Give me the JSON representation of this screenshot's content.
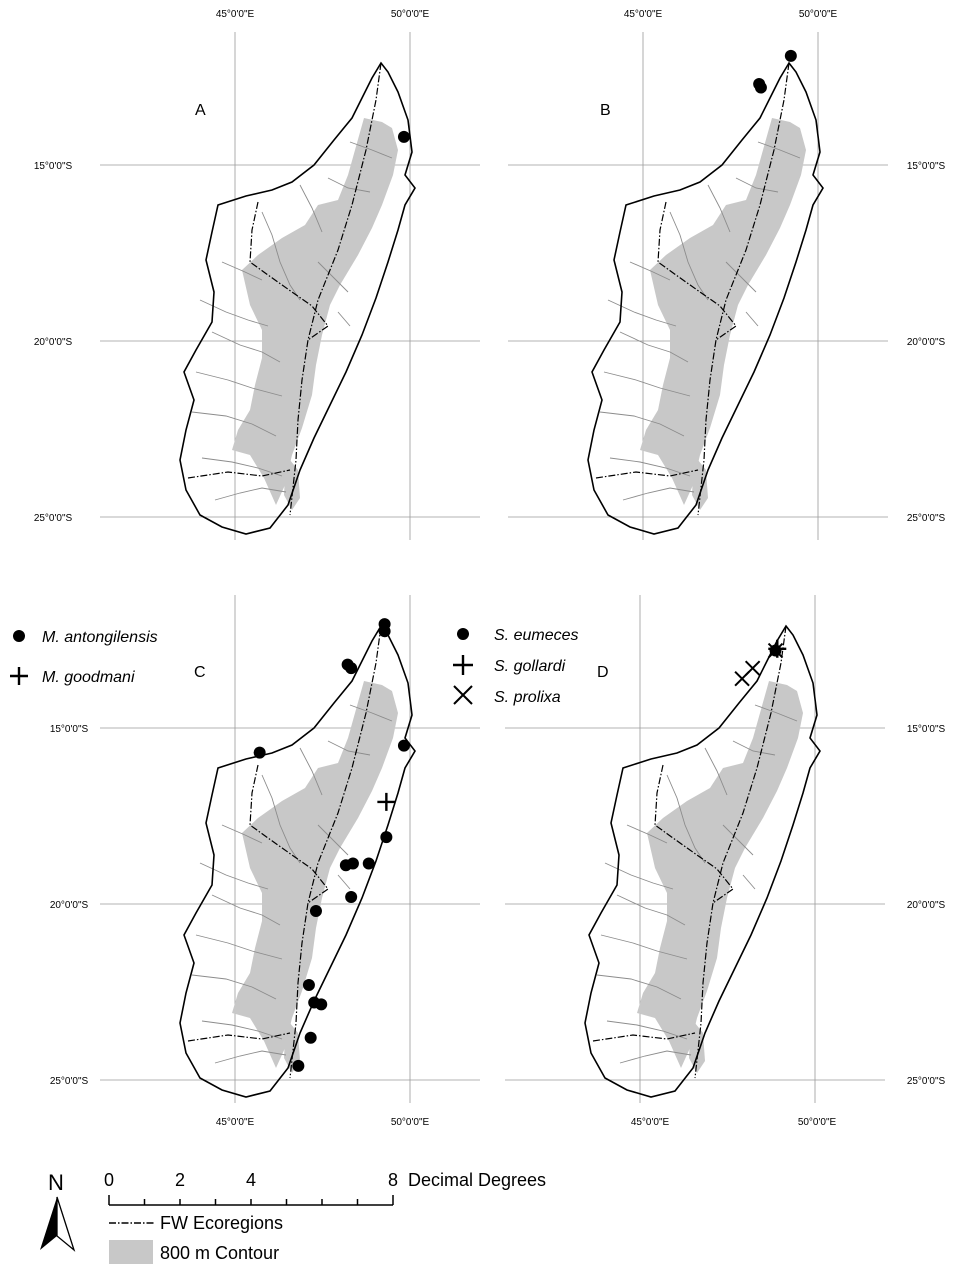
{
  "panels": [
    {
      "letter": "A",
      "lon_labels": [
        "45°0'0\"E",
        "50°0'0\"E"
      ],
      "lat_labels": [
        "15°0'0\"S",
        "20°0'0\"S",
        "25°0'0\"S"
      ],
      "records": [
        {
          "symbol": "dot",
          "lon": 49.8,
          "lat": -14.2
        }
      ]
    },
    {
      "letter": "B",
      "lon_labels": [
        "45°0'0\"E",
        "50°0'0\"E"
      ],
      "lat_labels": [
        "15°0'0\"S",
        "20°0'0\"S",
        "25°0'0\"S"
      ],
      "records": [
        {
          "symbol": "dot",
          "lon": 49.2,
          "lat": -11.9
        },
        {
          "symbol": "dot",
          "lon": 48.3,
          "lat": -12.7
        },
        {
          "symbol": "dot",
          "lon": 48.35,
          "lat": -12.8
        }
      ]
    },
    {
      "letter": "C",
      "lon_labels": [
        "45°0'0\"E",
        "50°0'0\"E"
      ],
      "lat_labels": [
        "15°0'0\"S",
        "20°0'0\"S",
        "25°0'0\"S"
      ],
      "records": [
        {
          "symbol": "dot",
          "lon": 49.25,
          "lat": -12.25
        },
        {
          "symbol": "dot",
          "lon": 49.25,
          "lat": -12.05
        },
        {
          "symbol": "dot",
          "lon": 48.2,
          "lat": -13.2
        },
        {
          "symbol": "dot",
          "lon": 48.3,
          "lat": -13.3
        },
        {
          "symbol": "dot",
          "lon": 45.7,
          "lat": -15.7
        },
        {
          "symbol": "dot",
          "lon": 49.8,
          "lat": -15.5
        },
        {
          "symbol": "plus",
          "lon": 49.3,
          "lat": -17.1
        },
        {
          "symbol": "dot",
          "lon": 49.3,
          "lat": -18.1
        },
        {
          "symbol": "dot",
          "lon": 48.15,
          "lat": -18.9
        },
        {
          "symbol": "dot",
          "lon": 48.35,
          "lat": -18.85
        },
        {
          "symbol": "dot",
          "lon": 48.8,
          "lat": -18.85
        },
        {
          "symbol": "dot",
          "lon": 48.3,
          "lat": -19.8
        },
        {
          "symbol": "dot",
          "lon": 47.3,
          "lat": -20.2
        },
        {
          "symbol": "dot",
          "lon": 47.1,
          "lat": -22.3
        },
        {
          "symbol": "dot",
          "lon": 47.25,
          "lat": -22.8
        },
        {
          "symbol": "dot",
          "lon": 47.45,
          "lat": -22.85
        },
        {
          "symbol": "dot",
          "lon": 47.15,
          "lat": -23.8
        },
        {
          "symbol": "dot",
          "lon": 46.8,
          "lat": -24.6
        }
      ]
    },
    {
      "letter": "D",
      "lon_labels": [
        "45°0'0\"E",
        "50°0'0\"E"
      ],
      "lat_labels": [
        "15°0'0\"S",
        "20°0'0\"S",
        "25°0'0\"S"
      ],
      "records": [
        {
          "symbol": "dot",
          "lon": 48.85,
          "lat": -12.8
        },
        {
          "symbol": "plus",
          "lon": 48.9,
          "lat": -12.75
        },
        {
          "symbol": "cross",
          "lon": 48.85,
          "lat": -12.8
        },
        {
          "symbol": "cross",
          "lon": 48.2,
          "lat": -13.3
        },
        {
          "symbol": "cross",
          "lon": 47.9,
          "lat": -13.6
        }
      ]
    }
  ],
  "legend_c": [
    {
      "symbol": "dot",
      "label": "M. antongilensis"
    },
    {
      "symbol": "plus",
      "label": "M. goodmani"
    }
  ],
  "legend_d": [
    {
      "symbol": "dot",
      "label": "S. eumeces"
    },
    {
      "symbol": "plus",
      "label": "S. gollardi"
    },
    {
      "symbol": "cross",
      "label": "S. prolixa"
    }
  ],
  "north": "N",
  "scale": {
    "ticks": [
      "0",
      "2",
      "4",
      "8"
    ],
    "unit": "Decimal Degrees"
  },
  "bottom_legend": [
    {
      "kind": "ecoregion-line",
      "label": "FW Ecoregions"
    },
    {
      "kind": "contour-swatch",
      "label": "800 m Contour"
    }
  ],
  "colors": {
    "contour": "#c8c8c8",
    "outline": "#000000",
    "rivers": "#8c8c8c",
    "grid": "#9a9a9a",
    "marker": "#000000"
  }
}
